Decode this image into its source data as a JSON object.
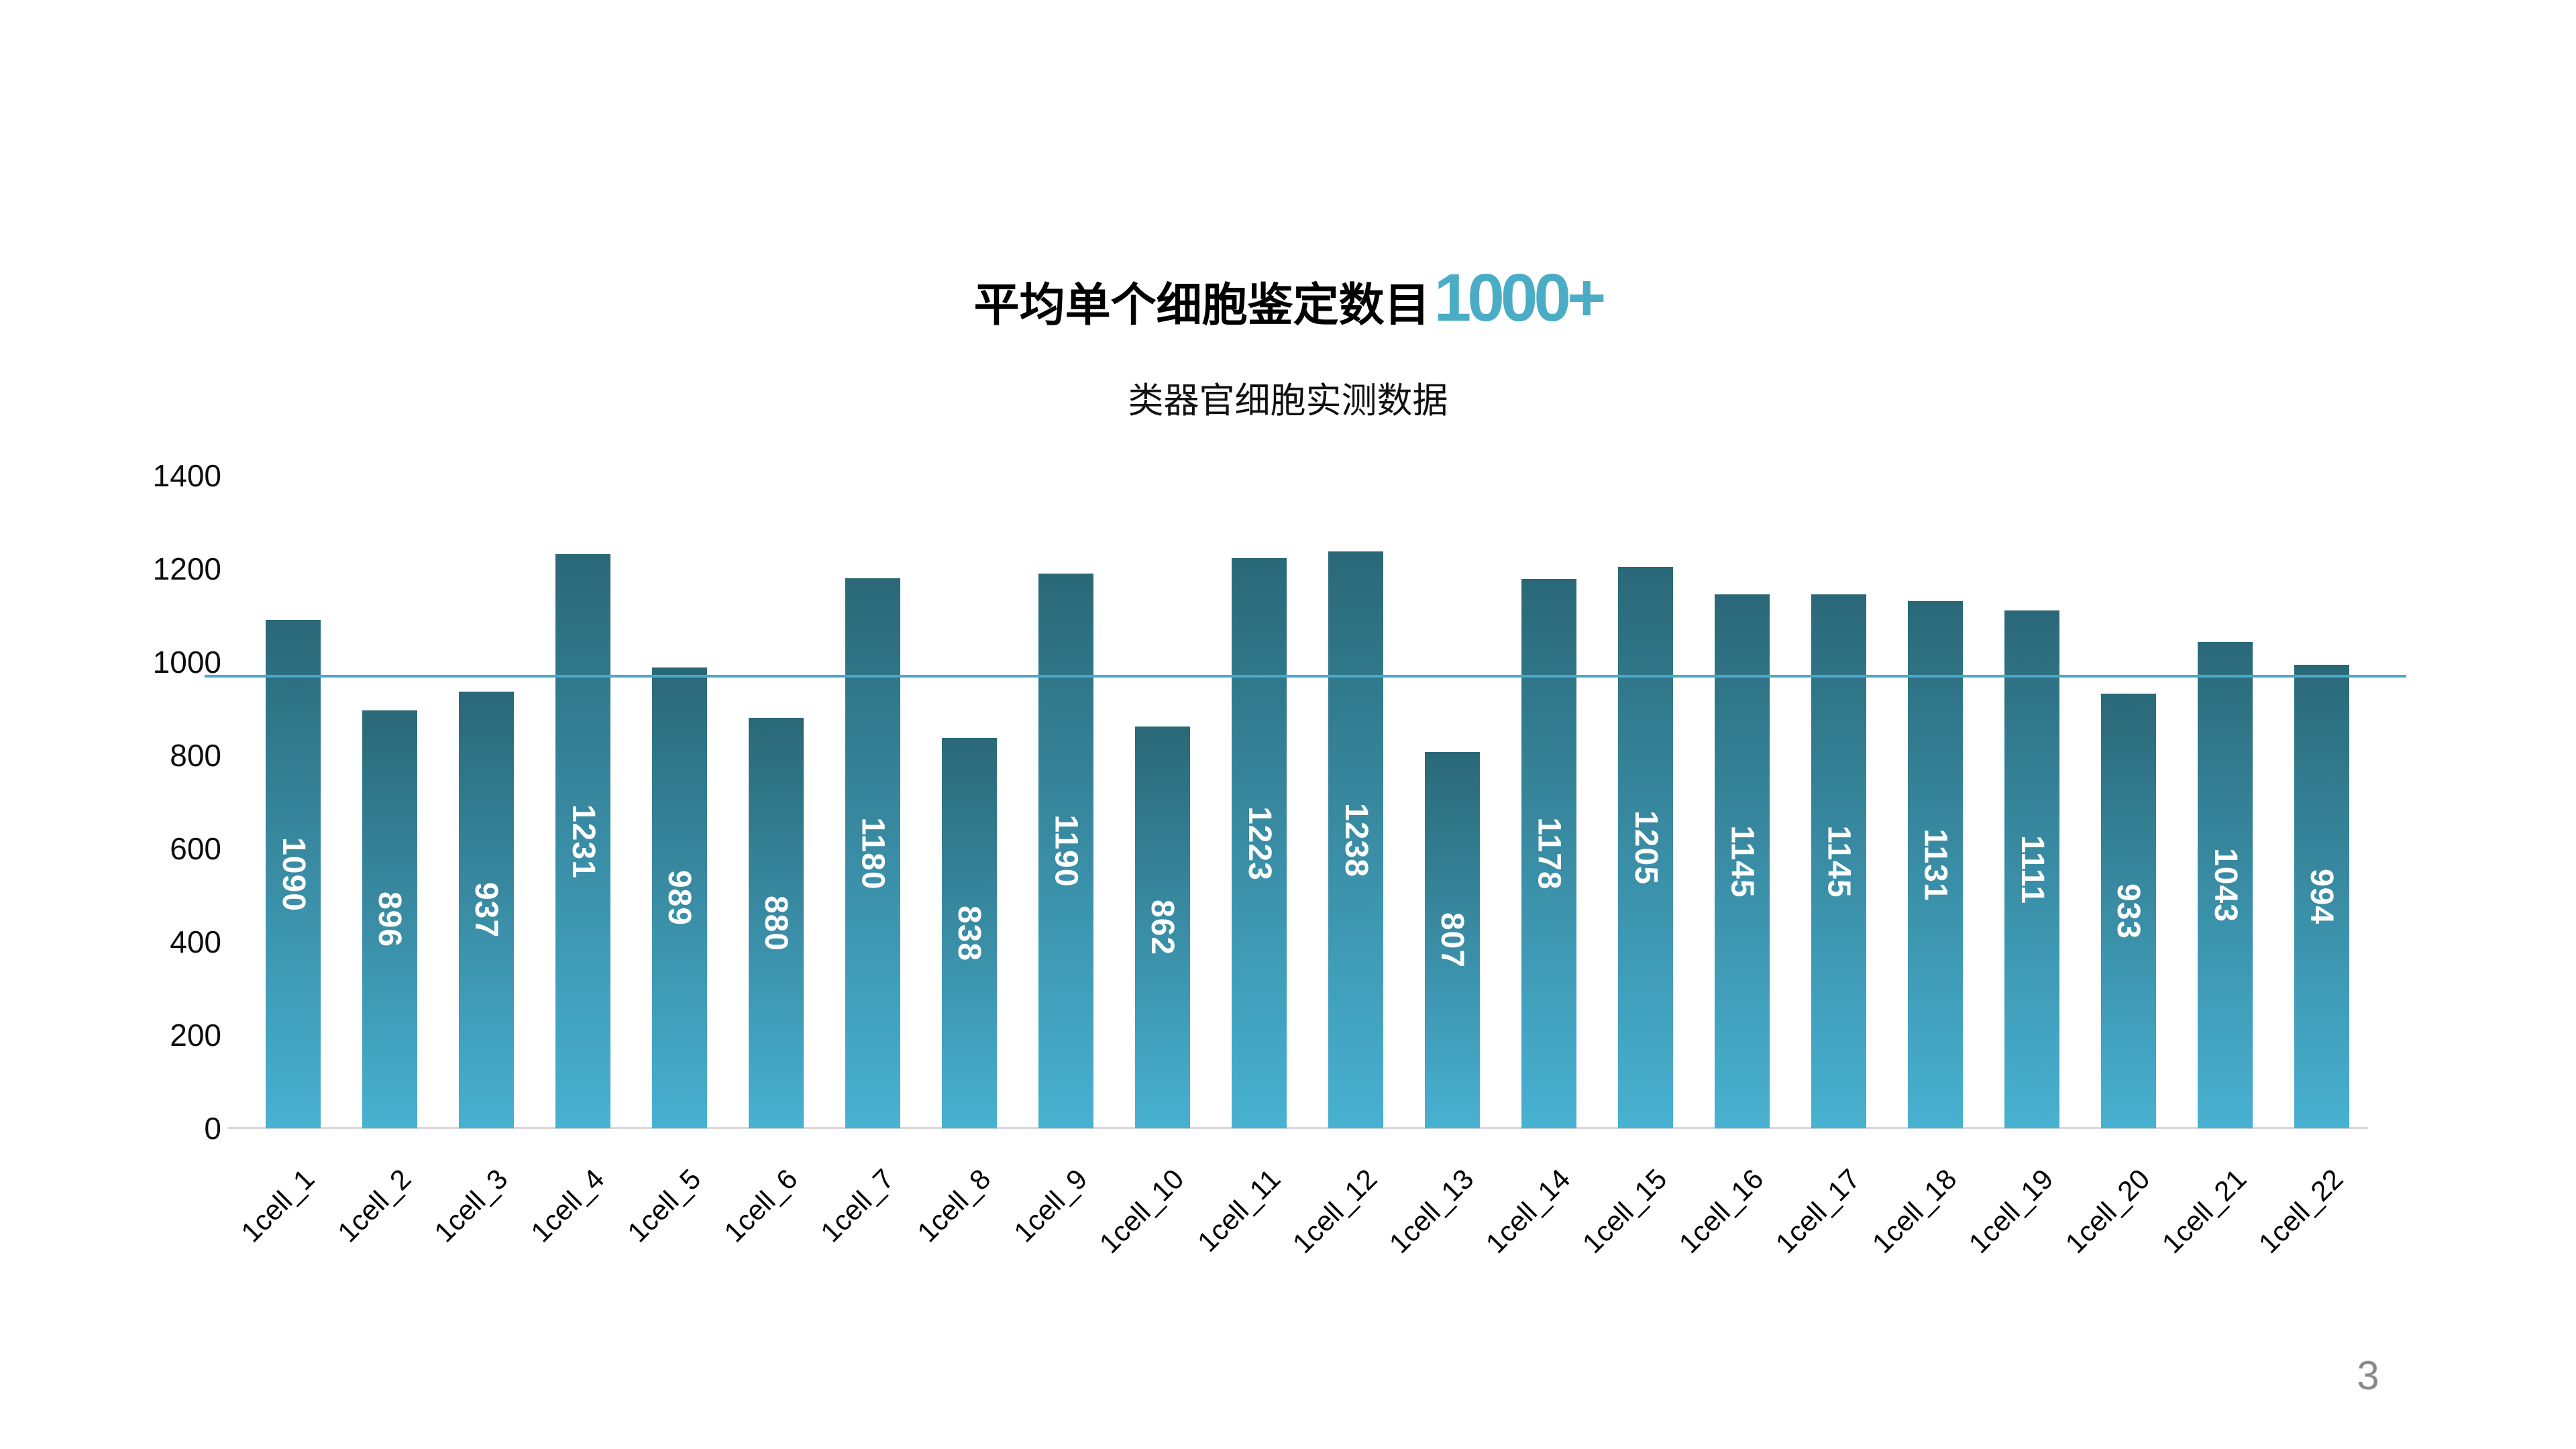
{
  "header": {
    "title_prefix": "平均单个细胞鉴定数目",
    "title_highlight": "1000+",
    "subtitle": "类器官细胞实测数据"
  },
  "slide": {
    "page_number": "3"
  },
  "colors": {
    "title_highlight": "#4BACC6",
    "reference_line": "#4AA8C9",
    "bar_gradient_top": "#2A6878",
    "bar_gradient_bottom": "#48B1D1",
    "value_label": "#FFFFFF",
    "axis_baseline": "#D9D9D9",
    "page_number": "#8A8A8A"
  },
  "chart_data": {
    "type": "bar",
    "title": "平均单个细胞鉴定数目1000+",
    "subtitle": "类器官细胞实测数据",
    "categories": [
      "1cell_1",
      "1cell_2",
      "1cell_3",
      "1cell_4",
      "1cell_5",
      "1cell_6",
      "1cell_7",
      "1cell_8",
      "1cell_9",
      "1cell_10",
      "1cell_11",
      "1cell_12",
      "1cell_13",
      "1cell_14",
      "1cell_15",
      "1cell_16",
      "1cell_17",
      "1cell_18",
      "1cell_19",
      "1cell_20",
      "1cell_21",
      "1cell_22"
    ],
    "values": [
      1090,
      896,
      937,
      1231,
      989,
      880,
      1180,
      838,
      1190,
      862,
      1223,
      1238,
      807,
      1178,
      1205,
      1145,
      1145,
      1131,
      1111,
      933,
      1043,
      994
    ],
    "xlabel": "",
    "ylabel": "",
    "ylim": [
      0,
      1400
    ],
    "yticks": [
      0,
      200,
      400,
      600,
      800,
      1000,
      1200,
      1400
    ],
    "grid": false,
    "legend": false,
    "value_labels_visible": true,
    "value_label_rotation_deg": 90,
    "reference_line": {
      "value": 970
    }
  }
}
